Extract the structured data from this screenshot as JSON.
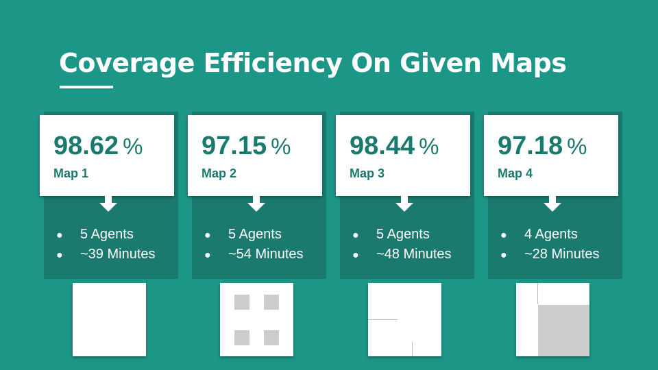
{
  "slide": {
    "title": "Coverage Efficiency On Given Maps"
  },
  "cards": [
    {
      "percent": "98.62",
      "percent_sign": "%",
      "map_label": "Map 1",
      "agents": "5 Agents",
      "duration": "~39 Minutes"
    },
    {
      "percent": "97.15",
      "percent_sign": "%",
      "map_label": "Map 2",
      "agents": "5 Agents",
      "duration": "~54 Minutes"
    },
    {
      "percent": "98.44",
      "percent_sign": "%",
      "map_label": "Map 3",
      "agents": "5 Agents",
      "duration": "~48 Minutes"
    },
    {
      "percent": "97.18",
      "percent_sign": "%",
      "map_label": "Map 4",
      "agents": "4 Agents",
      "duration": "~28 Minutes"
    }
  ],
  "bullet_glyph": "●",
  "colors": {
    "background": "#1c9687",
    "card_dark": "#1b7a6e",
    "card_light": "#ffffff",
    "accent_text": "#1b7a6e",
    "obstacle": "#cccccc"
  }
}
